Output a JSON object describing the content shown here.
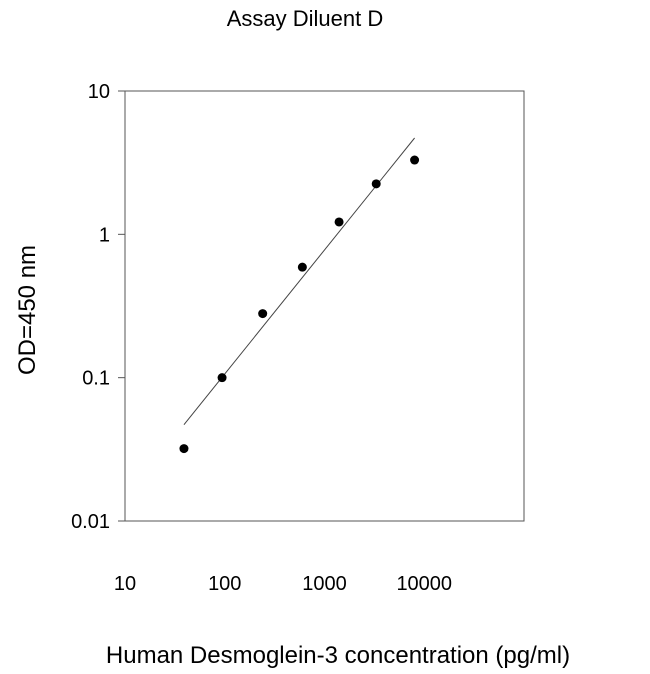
{
  "chart_data": {
    "type": "scatter",
    "title": "Assay Diluent D",
    "xlabel": "Human Desmoglein-3 concentration (pg/ml)",
    "ylabel": "OD=450 nm",
    "x_scale": "log",
    "y_scale": "log",
    "xlim": [
      10,
      100000
    ],
    "ylim": [
      0.01,
      10
    ],
    "x_tick_labels": [
      "10",
      "100",
      "1000",
      "10000"
    ],
    "y_tick_labels": [
      "10",
      "1",
      "0.1",
      "0.01"
    ],
    "grid": false,
    "legend": "none",
    "series": [
      {
        "x": [
          39,
          94,
          240,
          600,
          1400,
          3300,
          8000
        ],
        "y": [
          0.032,
          0.1,
          0.28,
          0.59,
          1.22,
          2.25,
          3.3
        ]
      }
    ],
    "trendline": {
      "x": [
        39,
        8000
      ],
      "y": [
        0.047,
        4.7
      ]
    }
  }
}
